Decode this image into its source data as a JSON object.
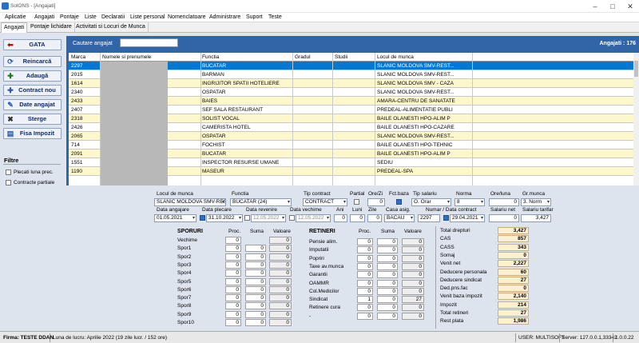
{
  "window": {
    "title": "SolONS - [Angajati]"
  },
  "menu": [
    "Aplicatie",
    "Angajati",
    "Pontaje",
    "Liste",
    "Declaratii",
    "Liste personal",
    "Nomenclatoare",
    "Administrare",
    "Suport",
    "Teste"
  ],
  "tabs": [
    "Angajati",
    "Pontaje lichidare",
    "Activitati si Locuri de Munca"
  ],
  "sidebar": {
    "buttons": [
      "GATA",
      "Reincarcă",
      "Adaugă",
      "Contract nou",
      "Date angajat",
      "Sterge",
      "Fisa Impozit"
    ],
    "filters_title": "Filtre",
    "filters": [
      "Plecati luna prec.",
      "Contracte partiale"
    ]
  },
  "search": {
    "label": "Cautare angajat",
    "value": ""
  },
  "count": "Angajati : 176",
  "grid": {
    "columns": [
      "Marca",
      "Numele si prenumele",
      "Functia",
      "Gradul",
      "Studii",
      "Locul de munca"
    ],
    "rows": [
      [
        "2297",
        "",
        "BUCATAR",
        "",
        "",
        "SLANIC MOLDOVA SMV-REST..."
      ],
      [
        "2015",
        "",
        "BARMAN",
        "",
        "",
        "SLANIC MOLDOVA SMV-REST..."
      ],
      [
        "1614",
        "",
        "INGRIJITOR SPATII HOTELIERE",
        "",
        "",
        "SLANIC MOLDOVA SMV - CAZA"
      ],
      [
        "2340",
        "",
        "OSPATAR",
        "",
        "",
        "SLANIC MOLDOVA SMV-REST..."
      ],
      [
        "2433",
        "",
        "BAIES",
        "",
        "",
        "AMARA-CENTRU DE SANATATE"
      ],
      [
        "2407",
        "",
        "SEF SALA RESTAURANT",
        "",
        "",
        "PREDEAL-ALIMENTATIE PUBLI"
      ],
      [
        "2318",
        "",
        "SOLIST VOCAL",
        "",
        "",
        "BAILE OLANESTI HPO-ALIM P"
      ],
      [
        "2426",
        "",
        "CAMERISTA HOTEL",
        "",
        "",
        "BAILE OLANESTI HPO-CAZARE"
      ],
      [
        "2065",
        "",
        "OSPATAR",
        "",
        "",
        "SLANIC MOLDOVA SMV-REST..."
      ],
      [
        "714",
        "",
        "FOCHIST",
        "",
        "",
        "BAILE OLANESTI HPO-TEHNIC"
      ],
      [
        "2091",
        "",
        "BUCATAR",
        "",
        "",
        "BAILE OLANESTI HPO-ALIM P"
      ],
      [
        "1551",
        "",
        "INSPECTOR RESURSE UMANE",
        "",
        "",
        "SEDIU"
      ],
      [
        "1190",
        "",
        "MASEUR",
        "",
        "",
        "PREDEAL-SPA"
      ]
    ]
  },
  "form": {
    "loc_munca_label": "Locul de munca",
    "loc_munca": "SLANIC MOLDOVA SMV-RES",
    "functia_label": "Functia",
    "functia": "BUCATAR (24)",
    "tip_contract_label": "Tip contract",
    "tip_contract": "CONTRACT",
    "partial_label": "Partial",
    "ore_zi_label": "Ore/Zi",
    "ore_zi": "0",
    "fct_baza_label": "Fct.baza",
    "tip_salariu_label": "Tip salariu",
    "tip_salariu": "O. Orar",
    "norma_label": "Norma",
    "norma": "8",
    "ore_luna_label": "Ore/luna",
    "ore_luna": "0",
    "gr_munca_label": "Gr.munca",
    "gr_munca": "3. Norm",
    "data_angajare_label": "Data angajare",
    "data_angajare": "01.05.2021",
    "data_plecare_label": "Data plecare",
    "data_plecare": "31.10.2022",
    "data_revenire_label": "Data revenire",
    "data_revenire": "12.05.2022",
    "data_vechime_label": "Data vechime",
    "data_vechime": "12.05.2022",
    "ani_label": "Ani",
    "ani": "0",
    "luni_label": "Luni",
    "luni": "0",
    "zile_label": "Zile",
    "zile": "0",
    "casa_asig_label": "Casa asig.",
    "casa_asig": "BACAU",
    "numar_contract_label": "Numar / Data contract",
    "numar": "2297",
    "data_contract": "29.04.2021",
    "salariu_net_label": "Salariu net",
    "salariu_net": "0",
    "salariu_tarifar_label": "Salariu tarifar",
    "salariu_tarifar": "3,427"
  },
  "sporuri": {
    "title": "SPORURI",
    "h_proc": "Proc.",
    "h_suma": "Suma",
    "h_valoare": "Valoare",
    "rows": [
      {
        "name": "Vechime",
        "proc": "0",
        "suma": "",
        "val": "0"
      },
      {
        "name": "Spor1",
        "proc": "0",
        "suma": "0",
        "val": "0"
      },
      {
        "name": "Spor2",
        "proc": "0",
        "suma": "0",
        "val": "0"
      },
      {
        "name": "Spor3",
        "proc": "0",
        "suma": "0",
        "val": "0"
      },
      {
        "name": "Spor4",
        "proc": "0",
        "suma": "0",
        "val": "0"
      },
      {
        "name": "Spor5",
        "proc": "0",
        "suma": "0",
        "val": "0"
      },
      {
        "name": "Spor6",
        "proc": "0",
        "suma": "0",
        "val": "0"
      },
      {
        "name": "Spor7",
        "proc": "0",
        "suma": "0",
        "val": "0"
      },
      {
        "name": "Spor8",
        "proc": "0",
        "suma": "0",
        "val": "0"
      },
      {
        "name": "Spor9",
        "proc": "0",
        "suma": "0",
        "val": "0"
      },
      {
        "name": "Spor10",
        "proc": "0",
        "suma": "0",
        "val": "0"
      }
    ]
  },
  "retineri": {
    "title": "RETINERI",
    "h_proc": "Proc.",
    "h_suma": "Suma",
    "h_valoare": "Valoare",
    "rows": [
      {
        "name": "Pensie alim.",
        "proc": "0",
        "suma": "0",
        "val": "0"
      },
      {
        "name": "Imputatii",
        "proc": "0",
        "suma": "0",
        "val": "0"
      },
      {
        "name": "Popriri",
        "proc": "0",
        "suma": "0",
        "val": "0"
      },
      {
        "name": "Taxe av.munca",
        "proc": "0",
        "suma": "0",
        "val": "0"
      },
      {
        "name": "Garantii",
        "proc": "0",
        "suma": "0",
        "val": "0"
      },
      {
        "name": "OAMMR",
        "proc": "0",
        "suma": "0",
        "val": "0"
      },
      {
        "name": "Col.Medicilor",
        "proc": "0",
        "suma": "0",
        "val": "0"
      },
      {
        "name": "Sindicat",
        "proc": "1",
        "suma": "0",
        "val": "27"
      },
      {
        "name": "Retinere cura",
        "proc": "0",
        "suma": "0",
        "val": "0"
      },
      {
        "name": "-",
        "proc": "0",
        "suma": "0",
        "val": "0"
      }
    ]
  },
  "totals": [
    {
      "name": "Total drepturi",
      "val": "3,427"
    },
    {
      "name": "CAS",
      "val": "857"
    },
    {
      "name": "CASS",
      "val": "343"
    },
    {
      "name": "Somaj",
      "val": "0"
    },
    {
      "name": "Venit net",
      "val": "2,227"
    },
    {
      "name": "Deducere personala",
      "val": "60"
    },
    {
      "name": "Deducere sindicat",
      "val": "27"
    },
    {
      "name": "Ded.pns.fac",
      "val": "0"
    },
    {
      "name": "Venit baza impozit",
      "val": "2,140"
    },
    {
      "name": "Impozit",
      "val": "214"
    },
    {
      "name": "Total retineri",
      "val": "27"
    },
    {
      "name": "Rest plata",
      "val": "1,986"
    }
  ],
  "status": {
    "firma": "Firma: TESTE DDAN",
    "luna": "Luna de lucru: Aprilie 2022 (19 zile lucr. / 152 ore)",
    "user": "USER: MULTISOFT",
    "server": "Server: 127.0.0.1,33342",
    "version": "1.0.0.22"
  }
}
